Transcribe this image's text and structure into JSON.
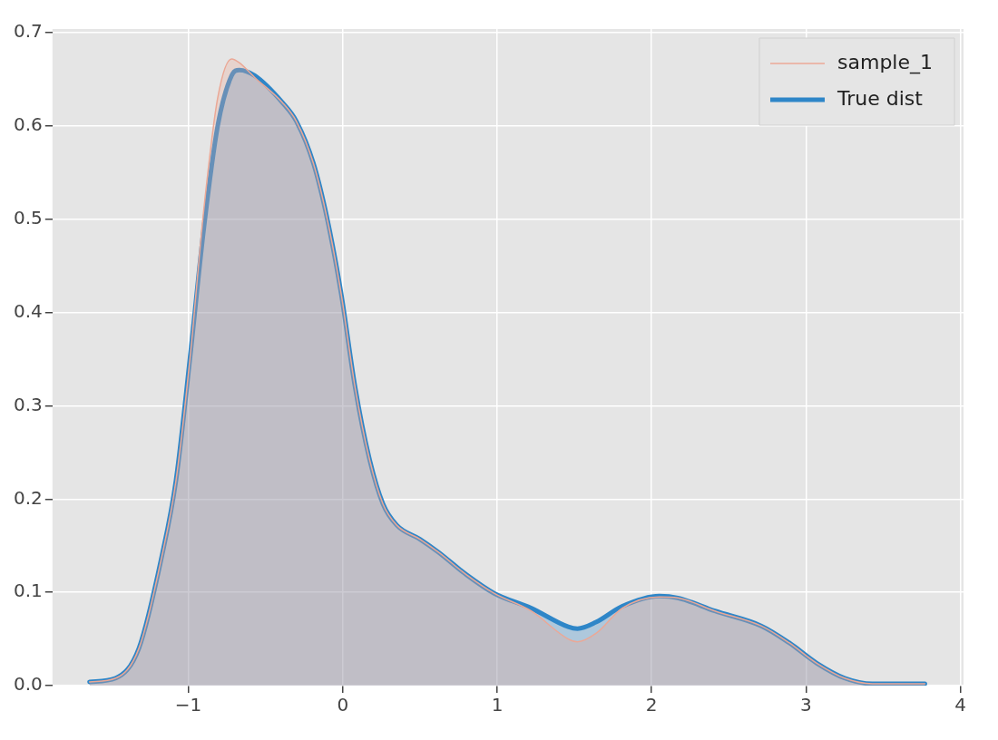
{
  "chart_data": {
    "type": "area",
    "x": [
      -1.64,
      -1.47,
      -1.32,
      -1.17,
      -1.08,
      -0.99,
      -0.9,
      -0.81,
      -0.72,
      -0.67,
      -0.57,
      -0.39,
      -0.3,
      -0.19,
      -0.1,
      -0.01,
      0.08,
      0.17,
      0.26,
      0.35,
      0.5,
      0.62,
      0.8,
      0.98,
      1.22,
      1.46,
      1.52,
      1.64,
      1.81,
      2.05,
      2.17,
      2.41,
      2.71,
      2.89,
      3.07,
      3.25,
      3.43,
      3.77
    ],
    "series": [
      {
        "name": "sample_1",
        "color": "#eba896",
        "values": [
          0.004,
          0.008,
          0.04,
          0.14,
          0.22,
          0.35,
          0.51,
          0.63,
          0.672,
          0.668,
          0.652,
          0.625,
          0.605,
          0.56,
          0.5,
          0.42,
          0.32,
          0.245,
          0.195,
          0.172,
          0.157,
          0.143,
          0.119,
          0.099,
          0.08,
          0.05,
          0.047,
          0.056,
          0.083,
          0.095,
          0.094,
          0.08,
          0.064,
          0.046,
          0.024,
          0.008,
          0.002,
          0.002
        ]
      },
      {
        "name": "True dist",
        "color": "#2e86c8",
        "values": [
          0.004,
          0.008,
          0.04,
          0.14,
          0.22,
          0.35,
          0.49,
          0.6,
          0.654,
          0.66,
          0.654,
          0.625,
          0.605,
          0.56,
          0.5,
          0.42,
          0.32,
          0.245,
          0.195,
          0.172,
          0.157,
          0.143,
          0.119,
          0.099,
          0.083,
          0.063,
          0.061,
          0.068,
          0.085,
          0.096,
          0.094,
          0.08,
          0.064,
          0.046,
          0.024,
          0.008,
          0.002,
          0.002
        ]
      }
    ],
    "xlim": [
      -1.88,
      4.02
    ],
    "ylim": [
      0,
      0.704
    ],
    "xticks": [
      {
        "value": -1,
        "label": "−1"
      },
      0,
      1,
      2,
      3,
      4
    ],
    "yticks": [
      {
        "value": 0,
        "label": "0.0"
      },
      0.1,
      0.2,
      0.3,
      0.4,
      0.5,
      0.6,
      0.7
    ],
    "grid": true,
    "legend": "top right"
  }
}
